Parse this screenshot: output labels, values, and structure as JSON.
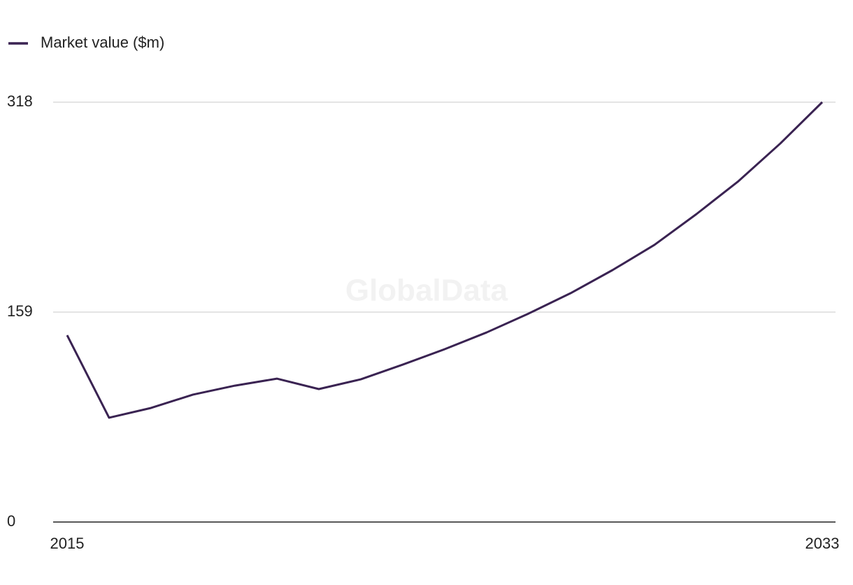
{
  "chart_data": {
    "type": "line",
    "watermark": "GlobalData",
    "x": [
      2015,
      2016,
      2017,
      2018,
      2019,
      2020,
      2021,
      2022,
      2023,
      2024,
      2025,
      2026,
      2027,
      2028,
      2029,
      2030,
      2031,
      2032,
      2033
    ],
    "series": [
      {
        "name": "Market value ($m)",
        "color": "#3a2352",
        "values": [
          141.5,
          79,
          86.4,
          96.5,
          103.3,
          108.6,
          100.7,
          108.1,
          119.2,
          130.9,
          143.6,
          157.9,
          173.3,
          190.8,
          209.9,
          233.2,
          258.1,
          286.7,
          318
        ]
      }
    ],
    "xlim": [
      2015,
      2033
    ],
    "xticks": [
      {
        "value": 2015,
        "label": "2015"
      },
      {
        "value": 2033,
        "label": "2033"
      }
    ],
    "ylim": [
      0,
      318
    ],
    "yticks": [
      0,
      159,
      318
    ],
    "grid": true,
    "legend": "top-left"
  }
}
